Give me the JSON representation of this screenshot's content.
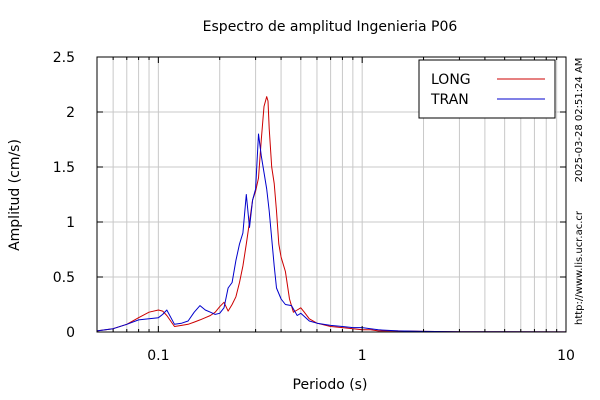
{
  "chart_data": {
    "type": "line",
    "title": "Espectro de amplitud Ingenieria P06",
    "xlabel": "Periodo (s)",
    "ylabel": "Amplitud (cm/s)",
    "xscale": "log",
    "xlim": [
      0.05,
      10
    ],
    "ylim": [
      0,
      2.5
    ],
    "x_ticks": [
      0.1,
      1,
      10
    ],
    "x_tick_labels": [
      "0.1",
      "1",
      "10"
    ],
    "y_ticks": [
      0,
      0.5,
      1,
      1.5,
      2,
      2.5
    ],
    "y_tick_labels": [
      "0",
      "0.5",
      "1",
      "1.5",
      "2",
      "2.5"
    ],
    "grid": true,
    "legend_position": "top-right",
    "series": [
      {
        "name": "LONG",
        "color": "#cc0000",
        "x": [
          0.05,
          0.06,
          0.07,
          0.08,
          0.09,
          0.1,
          0.105,
          0.11,
          0.12,
          0.13,
          0.14,
          0.15,
          0.16,
          0.17,
          0.18,
          0.19,
          0.2,
          0.21,
          0.22,
          0.23,
          0.24,
          0.25,
          0.26,
          0.27,
          0.28,
          0.29,
          0.3,
          0.31,
          0.32,
          0.33,
          0.34,
          0.345,
          0.35,
          0.36,
          0.37,
          0.38,
          0.39,
          0.4,
          0.42,
          0.44,
          0.46,
          0.48,
          0.5,
          0.52,
          0.55,
          0.6,
          0.7,
          0.8,
          0.9,
          1.0,
          1.1,
          1.2,
          1.5,
          2,
          3,
          5,
          10
        ],
        "y": [
          0.01,
          0.03,
          0.07,
          0.13,
          0.18,
          0.2,
          0.19,
          0.15,
          0.05,
          0.06,
          0.07,
          0.09,
          0.11,
          0.13,
          0.15,
          0.18,
          0.23,
          0.27,
          0.19,
          0.25,
          0.32,
          0.45,
          0.6,
          0.8,
          1.0,
          1.2,
          1.28,
          1.4,
          1.75,
          2.05,
          2.14,
          2.1,
          1.85,
          1.5,
          1.35,
          1.1,
          0.8,
          0.68,
          0.55,
          0.3,
          0.18,
          0.2,
          0.22,
          0.18,
          0.12,
          0.08,
          0.05,
          0.04,
          0.03,
          0.02,
          0.02,
          0.01,
          0.01,
          0.005,
          0.003,
          0.002,
          0.001
        ]
      },
      {
        "name": "TRAN",
        "color": "#0000cc",
        "x": [
          0.05,
          0.06,
          0.07,
          0.08,
          0.09,
          0.1,
          0.105,
          0.11,
          0.12,
          0.13,
          0.14,
          0.15,
          0.16,
          0.17,
          0.18,
          0.19,
          0.2,
          0.21,
          0.22,
          0.23,
          0.24,
          0.25,
          0.26,
          0.27,
          0.28,
          0.29,
          0.3,
          0.31,
          0.32,
          0.33,
          0.34,
          0.35,
          0.36,
          0.37,
          0.38,
          0.4,
          0.42,
          0.45,
          0.48,
          0.5,
          0.55,
          0.6,
          0.7,
          0.8,
          0.9,
          1.0,
          1.1,
          1.2,
          1.5,
          2,
          3,
          5,
          10
        ],
        "y": [
          0.01,
          0.03,
          0.07,
          0.11,
          0.12,
          0.13,
          0.16,
          0.2,
          0.07,
          0.08,
          0.1,
          0.18,
          0.24,
          0.2,
          0.18,
          0.16,
          0.17,
          0.22,
          0.4,
          0.45,
          0.65,
          0.8,
          0.9,
          1.25,
          0.95,
          1.2,
          1.3,
          1.8,
          1.6,
          1.45,
          1.3,
          1.1,
          0.85,
          0.6,
          0.4,
          0.3,
          0.25,
          0.24,
          0.15,
          0.17,
          0.1,
          0.08,
          0.06,
          0.05,
          0.04,
          0.04,
          0.03,
          0.02,
          0.01,
          0.005,
          0.003,
          0.002,
          0.001
        ]
      }
    ]
  },
  "side_text": {
    "timestamp": "2025-03-28 02:51:24 AM",
    "url": "http://www.lis.ucr.ac.cr"
  }
}
